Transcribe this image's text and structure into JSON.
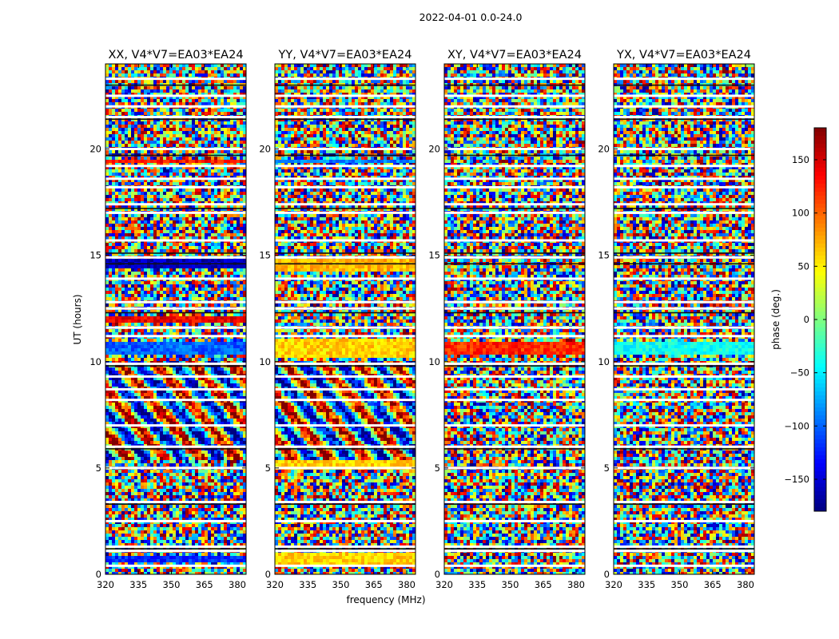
{
  "figure_title": "2022-04-01 0.0-24.0",
  "chart_data": {
    "type": "heatmap",
    "title": "2022-04-01 0.0-24.0",
    "xlabel": "frequency (MHz)",
    "ylabel": "UT (hours)",
    "xlim": [
      320,
      384
    ],
    "ylim": [
      0,
      24
    ],
    "x_ticks": [
      "320",
      "335",
      "350",
      "365",
      "380"
    ],
    "y_ticks": [
      "0",
      "5",
      "10",
      "15",
      "20"
    ],
    "colormap": "jet",
    "colorbar": {
      "label": "phase (deg.)",
      "range": [
        -180,
        180
      ],
      "ticks": [
        "−150",
        "−100",
        "−50",
        "0",
        "50",
        "100",
        "150"
      ]
    },
    "panels": [
      {
        "title": "XX, V4*V7=EA03*EA24",
        "structured_bands": [
          {
            "ut_range": [
              0.5,
              0.9
            ],
            "phase_deg": -120
          },
          {
            "ut_range": [
              10.3,
              10.9
            ],
            "phase_deg": -100
          },
          {
            "ut_range": [
              11.9,
              12.1
            ],
            "phase_deg": 140
          },
          {
            "ut_range": [
              14.4,
              14.8
            ],
            "phase_deg": -160
          },
          {
            "ut_range": [
              19.3,
              19.5
            ],
            "phase_deg": 130
          }
        ]
      },
      {
        "title": "YY, V4*V7=EA03*EA24",
        "structured_bands": [
          {
            "ut_range": [
              0.4,
              1.0
            ],
            "phase_deg": 60
          },
          {
            "ut_range": [
              4.9,
              5.3
            ],
            "phase_deg": 60
          },
          {
            "ut_range": [
              10.2,
              11.1
            ],
            "phase_deg": 60
          },
          {
            "ut_range": [
              14.3,
              14.8
            ],
            "phase_deg": 70
          },
          {
            "ut_range": [
              19.3,
              19.5
            ],
            "phase_deg": -90
          }
        ]
      },
      {
        "title": "XY, V4*V7=EA03*EA24",
        "structured_bands": [
          {
            "ut_range": [
              10.4,
              10.9
            ],
            "phase_deg": 120
          }
        ]
      },
      {
        "title": "YX, V4*V7=EA03*EA24",
        "structured_bands": [
          {
            "ut_range": [
              10.4,
              10.9
            ],
            "phase_deg": -40
          }
        ]
      }
    ],
    "flagged_ut_gaps": [
      0.4,
      1.1,
      1.3,
      2.5,
      3.4,
      5.0,
      6.0,
      7.0,
      8.2,
      8.7,
      9.3,
      9.9,
      11.2,
      11.6,
      12.5,
      12.8,
      13.9,
      14.9,
      15.7,
      17.0,
      17.4,
      18.2,
      18.6,
      19.2,
      20.0,
      21.5,
      22.0,
      22.5,
      23.3
    ],
    "flagged_ut_dark_lines": [
      1.2,
      3.3,
      5.9,
      9.8,
      12.3,
      14.6,
      15.1,
      17.2,
      19.7,
      21.4,
      23.0
    ]
  }
}
